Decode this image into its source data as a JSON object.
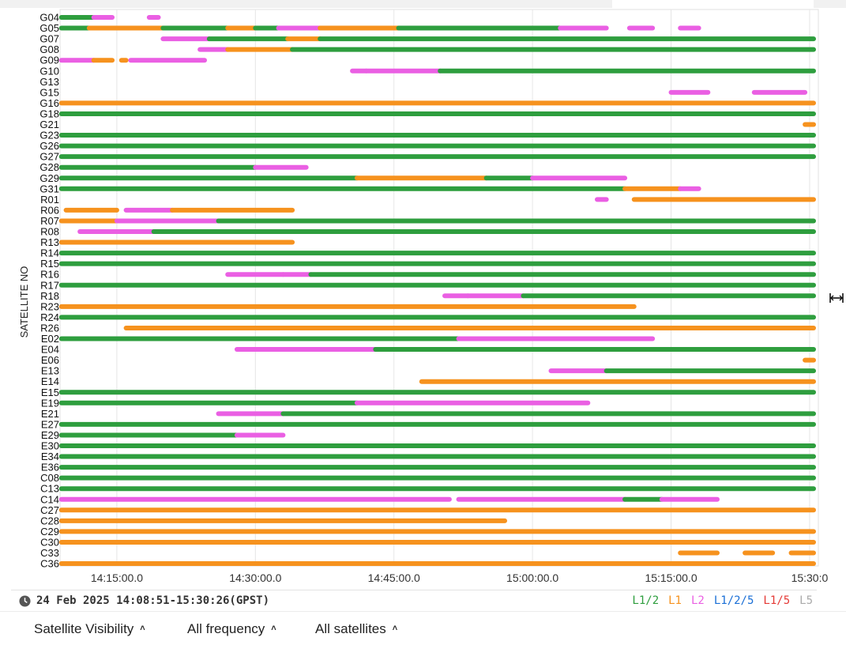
{
  "chart_data": {
    "type": "timeline",
    "ylabel": "SATELLITE NO",
    "x_range_minutes": [
      "14:08:51",
      "15:30:26"
    ],
    "x_ticks": [
      "14:15:00.0",
      "14:30:00.0",
      "14:45:00.0",
      "15:00:00.0",
      "15:15:00.0",
      "15:30:0"
    ],
    "grid": true,
    "colors": {
      "L1/2": "#2e9e3e",
      "L1": "#f6921e",
      "L2": "#ea5fe3",
      "L1/2/5": "#1a6fd6",
      "L1/5": "#e53935",
      "L5": "#aaaaaa"
    },
    "satellites": [
      {
        "id": "G04",
        "segments": [
          [
            "14:09:00",
            "14:12:30",
            "L1/2"
          ],
          [
            "14:12:30",
            "14:14:30",
            "L2"
          ],
          [
            "14:18:30",
            "14:19:30",
            "L2"
          ]
        ]
      },
      {
        "id": "G05",
        "segments": [
          [
            "14:09:00",
            "14:12:00",
            "L1/2"
          ],
          [
            "14:12:00",
            "14:20:00",
            "L1"
          ],
          [
            "14:20:00",
            "14:27:00",
            "L1/2"
          ],
          [
            "14:27:00",
            "14:30:00",
            "L1"
          ],
          [
            "14:30:00",
            "14:32:30",
            "L1/2"
          ],
          [
            "14:32:30",
            "14:37:00",
            "L2"
          ],
          [
            "14:37:00",
            "14:45:30",
            "L1"
          ],
          [
            "14:45:30",
            "14:50:00",
            "L1/2"
          ],
          [
            "14:50:00",
            "14:55:00",
            "L1/2"
          ],
          [
            "14:55:00",
            "15:03:00",
            "L1/2"
          ],
          [
            "15:03:00",
            "15:08:00",
            "L2"
          ],
          [
            "15:10:30",
            "15:13:00",
            "L2"
          ],
          [
            "15:16:00",
            "15:18:00",
            "L2"
          ]
        ]
      },
      {
        "id": "G07",
        "segments": [
          [
            "14:20:00",
            "14:25:00",
            "L2"
          ],
          [
            "14:25:00",
            "14:33:30",
            "L1/2"
          ],
          [
            "14:33:30",
            "14:37:00",
            "L1"
          ],
          [
            "14:37:00",
            "15:30:26",
            "L1/2"
          ]
        ]
      },
      {
        "id": "G08",
        "segments": [
          [
            "14:24:00",
            "14:27:00",
            "L2"
          ],
          [
            "14:27:00",
            "14:34:00",
            "L1"
          ],
          [
            "14:34:00",
            "15:30:26",
            "L1/2"
          ]
        ]
      },
      {
        "id": "G09",
        "segments": [
          [
            "14:09:00",
            "14:12:30",
            "L2"
          ],
          [
            "14:12:30",
            "14:14:30",
            "L1"
          ],
          [
            "14:15:30",
            "14:16:00",
            "L1"
          ],
          [
            "14:16:30",
            "14:24:30",
            "L2"
          ]
        ]
      },
      {
        "id": "G10",
        "segments": [
          [
            "14:40:30",
            "14:42:00",
            "L2"
          ],
          [
            "14:42:00",
            "14:50:00",
            "L2"
          ],
          [
            "14:50:00",
            "15:30:26",
            "L1/2"
          ]
        ]
      },
      {
        "id": "G13",
        "segments": []
      },
      {
        "id": "G15",
        "segments": [
          [
            "15:15:00",
            "15:19:00",
            "L2"
          ],
          [
            "15:24:00",
            "15:29:30",
            "L2"
          ]
        ]
      },
      {
        "id": "G16",
        "segments": [
          [
            "14:09:00",
            "15:30:26",
            "L1"
          ]
        ]
      },
      {
        "id": "G18",
        "segments": [
          [
            "14:09:00",
            "15:30:26",
            "L1/2"
          ]
        ]
      },
      {
        "id": "G21",
        "segments": [
          [
            "15:29:30",
            "15:30:26",
            "L1"
          ]
        ]
      },
      {
        "id": "G23",
        "segments": [
          [
            "14:09:00",
            "15:30:26",
            "L1/2"
          ]
        ]
      },
      {
        "id": "G26",
        "segments": [
          [
            "14:09:00",
            "15:30:26",
            "L1/2"
          ]
        ]
      },
      {
        "id": "G27",
        "segments": [
          [
            "14:09:00",
            "15:30:26",
            "L1/2"
          ]
        ]
      },
      {
        "id": "G28",
        "segments": [
          [
            "14:09:00",
            "14:30:00",
            "L1/2"
          ],
          [
            "14:30:00",
            "14:35:30",
            "L2"
          ]
        ]
      },
      {
        "id": "G29",
        "segments": [
          [
            "14:09:00",
            "14:41:00",
            "L1/2"
          ],
          [
            "14:41:00",
            "14:55:00",
            "L1"
          ],
          [
            "14:55:00",
            "15:00:00",
            "L1/2"
          ],
          [
            "15:00:00",
            "15:10:00",
            "L2"
          ]
        ]
      },
      {
        "id": "G31",
        "segments": [
          [
            "14:09:00",
            "15:10:00",
            "L1/2"
          ],
          [
            "15:10:00",
            "15:16:00",
            "L1"
          ],
          [
            "15:16:00",
            "15:18:00",
            "L2"
          ]
        ]
      },
      {
        "id": "R01",
        "segments": [
          [
            "15:07:00",
            "15:08:00",
            "L2"
          ],
          [
            "15:11:00",
            "15:30:26",
            "L1"
          ]
        ]
      },
      {
        "id": "R06",
        "segments": [
          [
            "14:09:30",
            "14:15:00",
            "L1"
          ],
          [
            "14:16:00",
            "14:21:00",
            "L2"
          ],
          [
            "14:21:00",
            "14:34:00",
            "L1"
          ]
        ]
      },
      {
        "id": "R07",
        "segments": [
          [
            "14:09:00",
            "14:15:00",
            "L1"
          ],
          [
            "14:15:00",
            "14:26:00",
            "L2"
          ],
          [
            "14:26:00",
            "15:30:26",
            "L1/2"
          ]
        ]
      },
      {
        "id": "R08",
        "segments": [
          [
            "14:11:00",
            "14:19:00",
            "L2"
          ],
          [
            "14:19:00",
            "15:30:26",
            "L1/2"
          ]
        ]
      },
      {
        "id": "R13",
        "segments": [
          [
            "14:09:00",
            "14:34:00",
            "L1"
          ]
        ]
      },
      {
        "id": "R14",
        "segments": [
          [
            "14:09:00",
            "15:30:26",
            "L1/2"
          ]
        ]
      },
      {
        "id": "R15",
        "segments": [
          [
            "14:09:00",
            "15:30:26",
            "L1/2"
          ]
        ]
      },
      {
        "id": "R16",
        "segments": [
          [
            "14:27:00",
            "14:33:00",
            "L2"
          ],
          [
            "14:33:00",
            "14:36:00",
            "L2"
          ],
          [
            "14:36:00",
            "15:30:26",
            "L1/2"
          ]
        ]
      },
      {
        "id": "R17",
        "segments": [
          [
            "14:09:00",
            "15:30:26",
            "L1/2"
          ]
        ]
      },
      {
        "id": "R18",
        "segments": [
          [
            "14:50:30",
            "14:53:00",
            "L2"
          ],
          [
            "14:53:00",
            "14:59:00",
            "L2"
          ],
          [
            "14:59:00",
            "15:30:26",
            "L1/2"
          ]
        ]
      },
      {
        "id": "R23",
        "segments": [
          [
            "14:09:00",
            "15:11:00",
            "L1"
          ]
        ]
      },
      {
        "id": "R24",
        "segments": [
          [
            "14:09:00",
            "15:30:26",
            "L1/2"
          ]
        ]
      },
      {
        "id": "R26",
        "segments": [
          [
            "14:16:00",
            "15:30:26",
            "L1"
          ]
        ]
      },
      {
        "id": "E02",
        "segments": [
          [
            "14:09:00",
            "14:52:00",
            "L1/2"
          ],
          [
            "14:52:00",
            "15:13:00",
            "L2"
          ]
        ]
      },
      {
        "id": "E04",
        "segments": [
          [
            "14:28:00",
            "14:43:00",
            "L2"
          ],
          [
            "14:43:00",
            "15:30:26",
            "L1/2"
          ]
        ]
      },
      {
        "id": "E06",
        "segments": [
          [
            "15:29:30",
            "15:30:26",
            "L1"
          ]
        ]
      },
      {
        "id": "E13",
        "segments": [
          [
            "15:02:00",
            "15:08:00",
            "L2"
          ],
          [
            "15:08:00",
            "15:30:26",
            "L1/2"
          ]
        ]
      },
      {
        "id": "E14",
        "segments": [
          [
            "14:48:00",
            "15:30:26",
            "L1"
          ]
        ]
      },
      {
        "id": "E15",
        "segments": [
          [
            "14:09:00",
            "15:30:26",
            "L1/2"
          ]
        ]
      },
      {
        "id": "E19",
        "segments": [
          [
            "14:09:00",
            "14:41:00",
            "L1/2"
          ],
          [
            "14:41:00",
            "15:06:00",
            "L2"
          ]
        ]
      },
      {
        "id": "E21",
        "segments": [
          [
            "14:26:00",
            "14:33:00",
            "L2"
          ],
          [
            "14:33:00",
            "15:30:26",
            "L1/2"
          ]
        ]
      },
      {
        "id": "E27",
        "segments": [
          [
            "14:09:00",
            "15:30:26",
            "L1/2"
          ]
        ]
      },
      {
        "id": "E29",
        "segments": [
          [
            "14:09:00",
            "14:28:00",
            "L1/2"
          ],
          [
            "14:28:00",
            "14:33:00",
            "L2"
          ]
        ]
      },
      {
        "id": "E30",
        "segments": [
          [
            "14:09:00",
            "15:30:26",
            "L1/2"
          ]
        ]
      },
      {
        "id": "E34",
        "segments": [
          [
            "14:09:00",
            "15:30:26",
            "L1/2"
          ]
        ]
      },
      {
        "id": "E36",
        "segments": [
          [
            "14:09:00",
            "15:30:26",
            "L1/2"
          ]
        ]
      },
      {
        "id": "C08",
        "segments": [
          [
            "14:09:00",
            "15:30:26",
            "L1/2"
          ]
        ]
      },
      {
        "id": "C13",
        "segments": [
          [
            "14:09:00",
            "15:30:26",
            "L1/2"
          ]
        ]
      },
      {
        "id": "C14",
        "segments": [
          [
            "14:09:00",
            "14:51:00",
            "L2"
          ],
          [
            "14:52:00",
            "15:10:00",
            "L2"
          ],
          [
            "15:10:00",
            "15:14:00",
            "L1/2"
          ],
          [
            "15:14:00",
            "15:20:00",
            "L2"
          ]
        ]
      },
      {
        "id": "C27",
        "segments": [
          [
            "14:09:00",
            "15:30:26",
            "L1"
          ]
        ]
      },
      {
        "id": "C28",
        "segments": [
          [
            "14:09:00",
            "14:57:00",
            "L1"
          ]
        ]
      },
      {
        "id": "C29",
        "segments": [
          [
            "14:09:00",
            "15:30:26",
            "L1"
          ]
        ]
      },
      {
        "id": "C30",
        "segments": [
          [
            "14:09:00",
            "15:30:26",
            "L1"
          ]
        ]
      },
      {
        "id": "C33",
        "segments": [
          [
            "15:16:00",
            "15:20:00",
            "L1"
          ],
          [
            "15:23:00",
            "15:26:00",
            "L1"
          ],
          [
            "15:28:00",
            "15:30:26",
            "L1"
          ]
        ]
      },
      {
        "id": "C36",
        "segments": [
          [
            "14:09:00",
            "15:30:26",
            "L1"
          ]
        ]
      }
    ]
  },
  "footer": {
    "time_range": "24 Feb 2025 14:08:51-15:30:26(GPST)",
    "legend": [
      {
        "label": "L1/2",
        "color": "#2e9e3e"
      },
      {
        "label": "L1",
        "color": "#f6921e"
      },
      {
        "label": "L2",
        "color": "#ea5fe3"
      },
      {
        "label": "L1/2/5",
        "color": "#1a6fd6"
      },
      {
        "label": "L1/5",
        "color": "#e53935"
      },
      {
        "label": "L5",
        "color": "#aaaaaa"
      }
    ]
  },
  "controls": {
    "view_label": "Satellite Visibility",
    "frequency_label": "All frequency",
    "satellites_label": "All satellites"
  },
  "icons": {
    "clock": "clock-icon",
    "chevron": "chevron-up-icon",
    "resize": "resize-handle-icon"
  }
}
